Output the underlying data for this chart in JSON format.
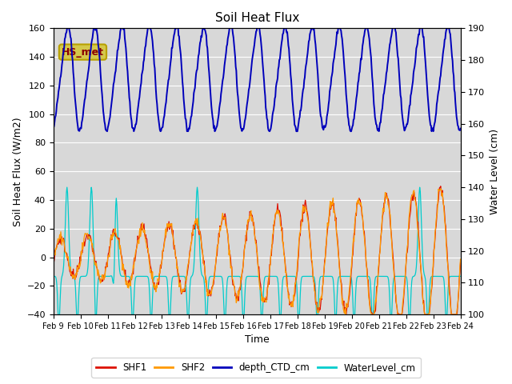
{
  "title": "Soil Heat Flux",
  "ylabel_left": "Soil Heat Flux (W/m2)",
  "ylabel_right": "Water Level (cm)",
  "xlabel": "Time",
  "ylim_left": [
    -40,
    160
  ],
  "ylim_right": [
    100,
    190
  ],
  "bg_color": "#d8d8d8",
  "xtick_labels": [
    "Feb 9",
    "Feb 10",
    "Feb 11",
    "Feb 12",
    "Feb 13",
    "Feb 14",
    "Feb 15",
    "Feb 16",
    "Feb 17",
    "Feb 18",
    "Feb 19",
    "Feb 20",
    "Feb 21",
    "Feb 22",
    "Feb 23",
    "Feb 24"
  ],
  "annotation_text": "HS_met",
  "annotation_color": "#8b0000",
  "annotation_bg": "#d4c84a",
  "annotation_edge": "#b8a000",
  "shf1_color": "#dd1100",
  "shf2_color": "#ff9900",
  "depth_color": "#0000bb",
  "water_color": "#00cccc",
  "legend_labels": [
    "SHF1",
    "SHF2",
    "depth_CTD_cm",
    "WaterLevel_cm"
  ],
  "grid_color": "#ffffff",
  "fig_width": 6.4,
  "fig_height": 4.8,
  "dpi": 100
}
